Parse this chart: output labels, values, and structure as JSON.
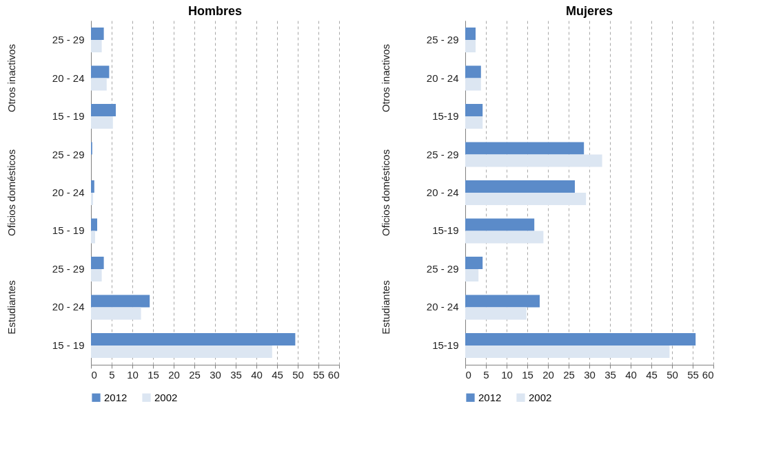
{
  "chart_data": [
    {
      "type": "bar",
      "title": "Hombres",
      "orientation": "horizontal",
      "categories": [
        "25 - 29",
        "20 - 24",
        "15 - 19",
        "25 - 29",
        "20 - 24",
        "15 - 19",
        "25 - 29",
        "20 - 24",
        "15 - 19"
      ],
      "annotations": [
        "Otros inactivos",
        "Oficios domésticos",
        "Estudiantes"
      ],
      "series": [
        {
          "name": "2012",
          "color": "#5b8bc9",
          "values": [
            3.1,
            4.4,
            6.0,
            0.3,
            0.8,
            1.5,
            3.1,
            14.2,
            49.4
          ]
        },
        {
          "name": "2002",
          "color": "#dce6f2",
          "values": [
            2.6,
            3.8,
            5.3,
            null,
            0.5,
            1.0,
            2.6,
            12.1,
            43.8
          ]
        }
      ],
      "xlim": [
        0,
        60
      ],
      "xticks": [
        0,
        5,
        10,
        15,
        20,
        25,
        30,
        35,
        40,
        45,
        50,
        55,
        60
      ],
      "grid": "x",
      "legend": "bottom"
    },
    {
      "type": "bar",
      "title": "Mujeres",
      "orientation": "horizontal",
      "categories": [
        "25 - 29",
        "20 - 24",
        "15-19",
        "25 - 29",
        "20 - 24",
        "15-19",
        "25 - 29",
        "20 - 24",
        "15-19"
      ],
      "annotations": [
        "Otros inactivos",
        "Oficios domésticos",
        "Estudiantes"
      ],
      "series": [
        {
          "name": "2012",
          "color": "#5b8bc9",
          "values": [
            2.5,
            3.8,
            4.2,
            28.7,
            26.5,
            16.7,
            4.2,
            18.0,
            55.7
          ]
        },
        {
          "name": "2002",
          "color": "#dce6f2",
          "values": [
            2.5,
            3.8,
            4.2,
            33.1,
            29.2,
            18.9,
            3.2,
            14.8,
            49.4
          ]
        }
      ],
      "xlim": [
        0,
        60
      ],
      "xticks": [
        0,
        5,
        10,
        15,
        20,
        25,
        30,
        35,
        40,
        45,
        50,
        55,
        60
      ],
      "grid": "x",
      "legend": "bottom"
    }
  ]
}
